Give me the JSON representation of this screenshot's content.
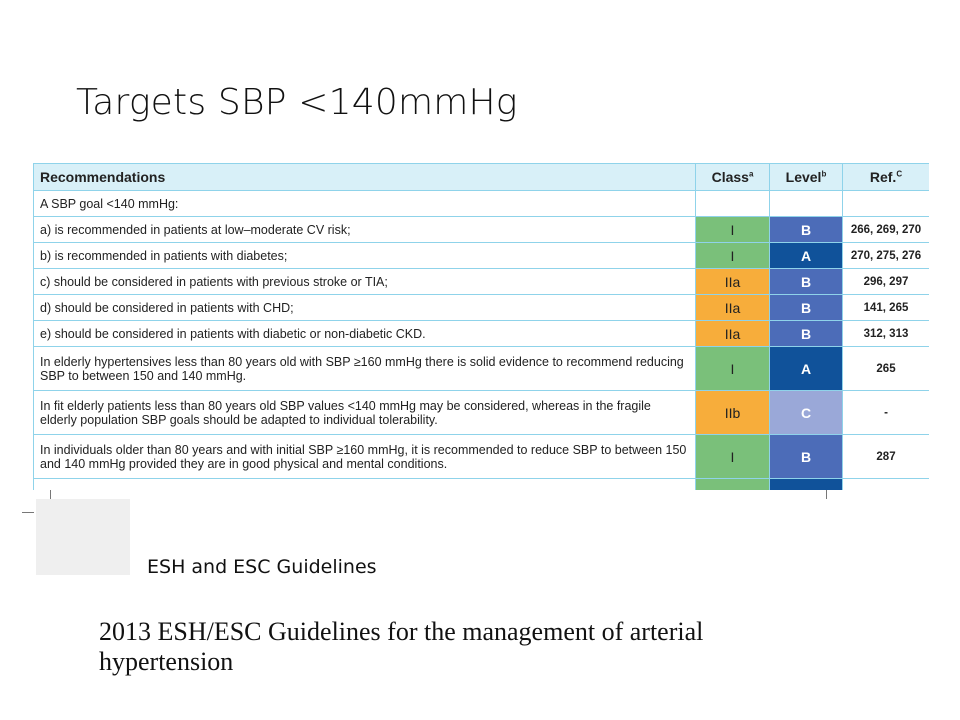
{
  "slide": {
    "title": "Targets SBP <140mmHg"
  },
  "table": {
    "headers": {
      "recommendations": "Recommendations",
      "class": "Class",
      "class_sup": "a",
      "level": "Level",
      "level_sup": "b",
      "ref": "Ref.",
      "ref_sup": "C"
    },
    "rows": [
      {
        "text": "A SBP goal <140 mmHg:",
        "class": "",
        "level": "",
        "ref": ""
      },
      {
        "text": "a) is recommended in patients at low–moderate CV risk;",
        "class": "I",
        "level": "B",
        "ref": "266, 269, 270"
      },
      {
        "text": "b) is recommended in patients with diabetes;",
        "class": "I",
        "level": "A",
        "ref": "270, 275, 276"
      },
      {
        "text": "c) should be considered in patients with previous stroke or TIA;",
        "class": "IIa",
        "level": "B",
        "ref": "296, 297"
      },
      {
        "text": "d) should be considered in patients with CHD;",
        "class": "IIa",
        "level": "B",
        "ref": "141, 265"
      },
      {
        "text": "e) should be considered in patients with diabetic or non-diabetic CKD.",
        "class": "IIa",
        "level": "B",
        "ref": "312, 313"
      },
      {
        "text": "In elderly hypertensives less than 80 years old with SBP ≥160 mmHg there is solid evidence to recommend reducing SBP to between 150 and 140 mmHg.",
        "class": "I",
        "level": "A",
        "ref": "265"
      },
      {
        "text": "In fit elderly patients less than 80 years old SBP values <140 mmHg may be considered, whereas in the fragile elderly population SBP goals should be adapted to individual tolerability.",
        "class": "IIb",
        "level": "C",
        "ref": "-"
      },
      {
        "text": "In individuals older than 80 years and with initial SBP ≥160 mmHg, it is recommended to reduce SBP to between 150 and 140 mmHg provided they are in good physical and mental conditions.",
        "class": "I",
        "level": "B",
        "ref": "287"
      }
    ]
  },
  "footer": {
    "journal": "ESH and ESC Guidelines",
    "paper_title": "2013 ESH/ESC Guidelines for the management of arterial hypertension"
  },
  "colors": {
    "header_bg": "#d8f0f8",
    "border": "#8fd3ea",
    "class_I": "#7ac07a",
    "class_IIa": "#f7ad3b",
    "level_A": "#10529a",
    "level_B": "#4c6cb8",
    "level_C": "#9aa8d8"
  }
}
